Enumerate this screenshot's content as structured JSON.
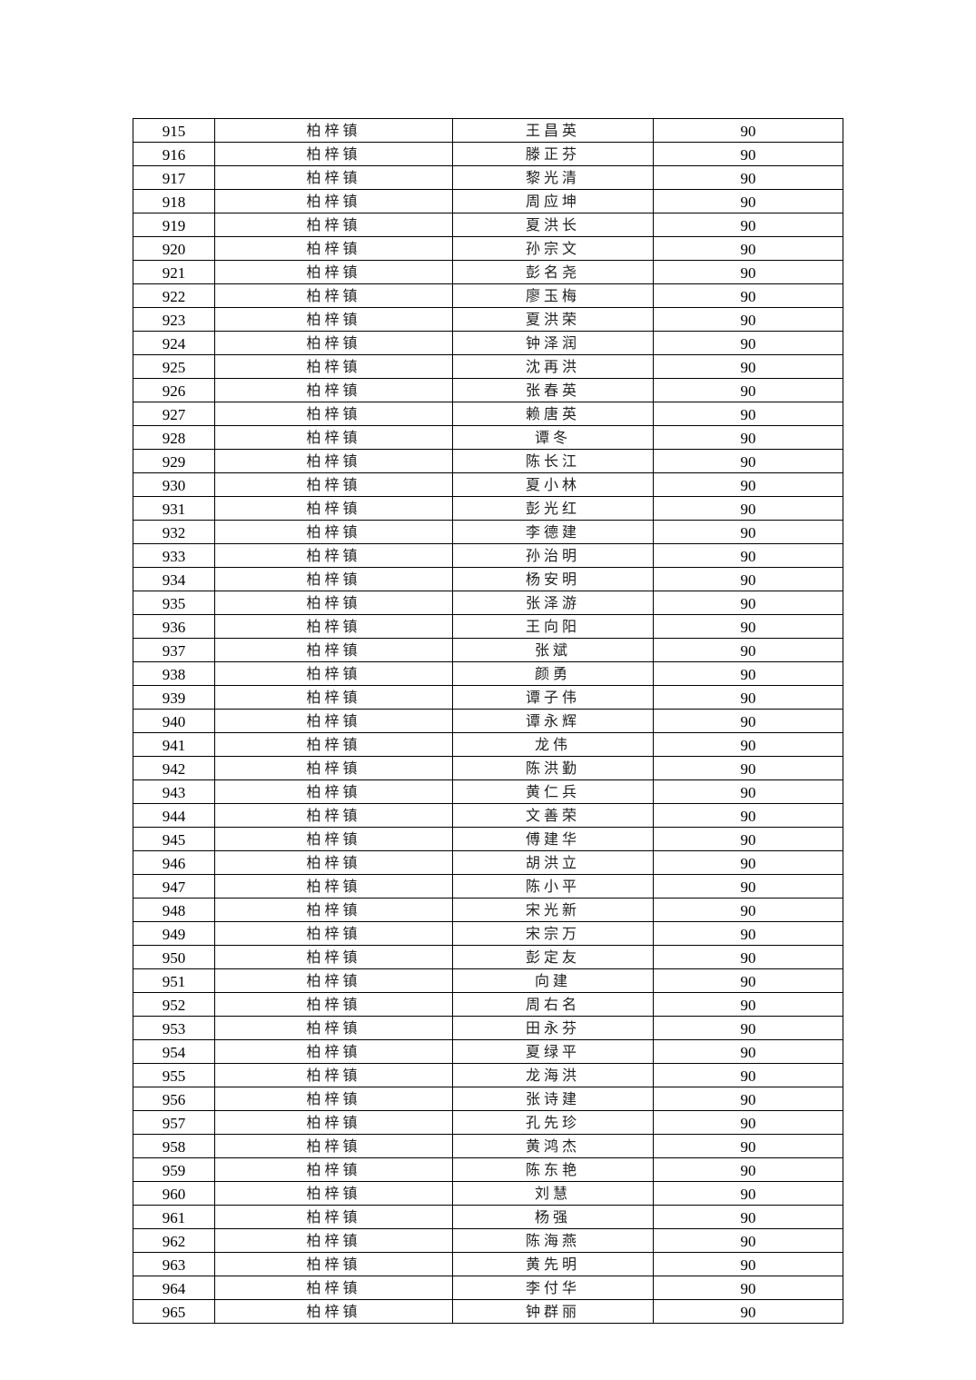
{
  "table": {
    "rows": [
      {
        "no": "915",
        "town": "柏梓镇",
        "name": "王昌英",
        "score": "90"
      },
      {
        "no": "916",
        "town": "柏梓镇",
        "name": "滕正芬",
        "score": "90"
      },
      {
        "no": "917",
        "town": "柏梓镇",
        "name": "黎光清",
        "score": "90"
      },
      {
        "no": "918",
        "town": "柏梓镇",
        "name": "周应坤",
        "score": "90"
      },
      {
        "no": "919",
        "town": "柏梓镇",
        "name": "夏洪长",
        "score": "90"
      },
      {
        "no": "920",
        "town": "柏梓镇",
        "name": "孙宗文",
        "score": "90"
      },
      {
        "no": "921",
        "town": "柏梓镇",
        "name": "彭名尧",
        "score": "90"
      },
      {
        "no": "922",
        "town": "柏梓镇",
        "name": "廖玉梅",
        "score": "90"
      },
      {
        "no": "923",
        "town": "柏梓镇",
        "name": "夏洪荣",
        "score": "90"
      },
      {
        "no": "924",
        "town": "柏梓镇",
        "name": "钟泽润",
        "score": "90"
      },
      {
        "no": "925",
        "town": "柏梓镇",
        "name": "沈再洪",
        "score": "90"
      },
      {
        "no": "926",
        "town": "柏梓镇",
        "name": "张春英",
        "score": "90"
      },
      {
        "no": "927",
        "town": "柏梓镇",
        "name": "赖唐英",
        "score": "90"
      },
      {
        "no": "928",
        "town": "柏梓镇",
        "name": "谭冬",
        "score": "90"
      },
      {
        "no": "929",
        "town": "柏梓镇",
        "name": "陈长江",
        "score": "90"
      },
      {
        "no": "930",
        "town": "柏梓镇",
        "name": "夏小林",
        "score": "90"
      },
      {
        "no": "931",
        "town": "柏梓镇",
        "name": "彭光红",
        "score": "90"
      },
      {
        "no": "932",
        "town": "柏梓镇",
        "name": "李德建",
        "score": "90"
      },
      {
        "no": "933",
        "town": "柏梓镇",
        "name": "孙治明",
        "score": "90"
      },
      {
        "no": "934",
        "town": "柏梓镇",
        "name": "杨安明",
        "score": "90"
      },
      {
        "no": "935",
        "town": "柏梓镇",
        "name": "张泽游",
        "score": "90"
      },
      {
        "no": "936",
        "town": "柏梓镇",
        "name": "王向阳",
        "score": "90"
      },
      {
        "no": "937",
        "town": "柏梓镇",
        "name": "张斌",
        "score": "90"
      },
      {
        "no": "938",
        "town": "柏梓镇",
        "name": "颜勇",
        "score": "90"
      },
      {
        "no": "939",
        "town": "柏梓镇",
        "name": "谭子伟",
        "score": "90"
      },
      {
        "no": "940",
        "town": "柏梓镇",
        "name": "谭永辉",
        "score": "90"
      },
      {
        "no": "941",
        "town": "柏梓镇",
        "name": "龙伟",
        "score": "90"
      },
      {
        "no": "942",
        "town": "柏梓镇",
        "name": "陈洪勤",
        "score": "90"
      },
      {
        "no": "943",
        "town": "柏梓镇",
        "name": "黄仁兵",
        "score": "90"
      },
      {
        "no": "944",
        "town": "柏梓镇",
        "name": "文善荣",
        "score": "90"
      },
      {
        "no": "945",
        "town": "柏梓镇",
        "name": "傅建华",
        "score": "90"
      },
      {
        "no": "946",
        "town": "柏梓镇",
        "name": "胡洪立",
        "score": "90"
      },
      {
        "no": "947",
        "town": "柏梓镇",
        "name": "陈小平",
        "score": "90"
      },
      {
        "no": "948",
        "town": "柏梓镇",
        "name": "宋光新",
        "score": "90"
      },
      {
        "no": "949",
        "town": "柏梓镇",
        "name": "宋宗万",
        "score": "90"
      },
      {
        "no": "950",
        "town": "柏梓镇",
        "name": "彭定友",
        "score": "90"
      },
      {
        "no": "951",
        "town": "柏梓镇",
        "name": "向建",
        "score": "90"
      },
      {
        "no": "952",
        "town": "柏梓镇",
        "name": "周右名",
        "score": "90"
      },
      {
        "no": "953",
        "town": "柏梓镇",
        "name": "田永芬",
        "score": "90"
      },
      {
        "no": "954",
        "town": "柏梓镇",
        "name": "夏绿平",
        "score": "90"
      },
      {
        "no": "955",
        "town": "柏梓镇",
        "name": "龙海洪",
        "score": "90"
      },
      {
        "no": "956",
        "town": "柏梓镇",
        "name": "张诗建",
        "score": "90"
      },
      {
        "no": "957",
        "town": "柏梓镇",
        "name": "孔先珍",
        "score": "90"
      },
      {
        "no": "958",
        "town": "柏梓镇",
        "name": "黄鸿杰",
        "score": "90"
      },
      {
        "no": "959",
        "town": "柏梓镇",
        "name": "陈东艳",
        "score": "90"
      },
      {
        "no": "960",
        "town": "柏梓镇",
        "name": "刘慧",
        "score": "90"
      },
      {
        "no": "961",
        "town": "柏梓镇",
        "name": "杨强",
        "score": "90"
      },
      {
        "no": "962",
        "town": "柏梓镇",
        "name": "陈海燕",
        "score": "90"
      },
      {
        "no": "963",
        "town": "柏梓镇",
        "name": "黄先明",
        "score": "90"
      },
      {
        "no": "964",
        "town": "柏梓镇",
        "name": "李付华",
        "score": "90"
      },
      {
        "no": "965",
        "town": "柏梓镇",
        "name": "钟群丽",
        "score": "90"
      }
    ]
  }
}
